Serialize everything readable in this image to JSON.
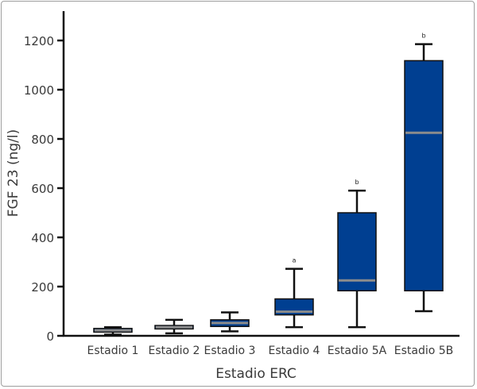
{
  "chart_data": {
    "type": "boxplot",
    "xlabel": "Estadio ERC",
    "ylabel": "FGF 23 (ng/l)",
    "ylim": [
      0,
      1300
    ],
    "yticks": [
      0,
      200,
      400,
      600,
      800,
      1000,
      1200
    ],
    "grid": false,
    "categories": [
      "Estadio 1",
      "Estadio 2",
      "Estadio 3",
      "Estadio 4",
      "Estadio 5A",
      "Estadio 5B"
    ],
    "boxes": [
      {
        "min": 5,
        "q1": 15,
        "median": 22,
        "q3": 30,
        "max": 35,
        "annotation": ""
      },
      {
        "min": 10,
        "q1": 28,
        "median": 35,
        "q3": 42,
        "max": 65,
        "annotation": ""
      },
      {
        "min": 18,
        "q1": 38,
        "median": 52,
        "q3": 65,
        "max": 95,
        "annotation": ""
      },
      {
        "min": 35,
        "q1": 85,
        "median": 98,
        "q3": 150,
        "max": 272,
        "annotation": "a"
      },
      {
        "min": 35,
        "q1": 183,
        "median": 225,
        "q3": 500,
        "max": 590,
        "annotation": "b"
      },
      {
        "min": 100,
        "q1": 183,
        "median": 825,
        "q3": 1118,
        "max": 1185,
        "annotation": "b"
      }
    ],
    "colors": {
      "box_fill": "#003f91",
      "median": "#8c8c8c",
      "whisker": "#111111",
      "axis": "#111111",
      "text": "#3a3a3a"
    }
  }
}
